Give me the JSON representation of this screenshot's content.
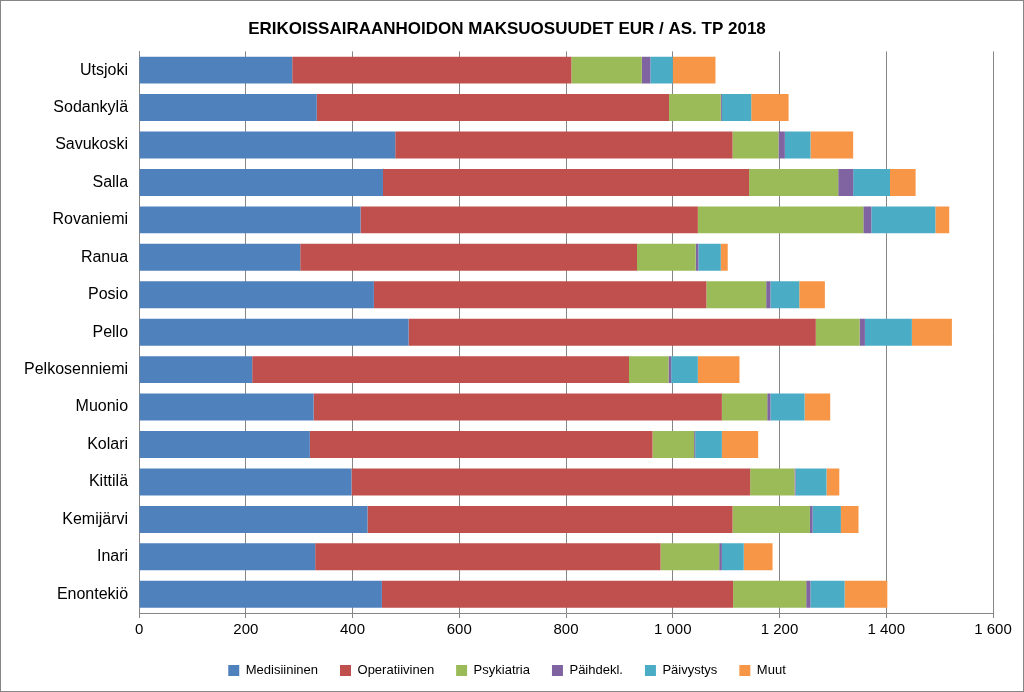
{
  "chart_data": {
    "type": "bar",
    "orientation": "horizontal",
    "stacked": true,
    "title": "ERIKOISSAIRAANHOIDON MAKSUOSUUDET EUR / AS. TP 2018",
    "categories": [
      "Utsjoki",
      "Sodankylä",
      "Savukoski",
      "Salla",
      "Rovaniemi",
      "Ranua",
      "Posio",
      "Pello",
      "Pelkosenniemi",
      "Muonio",
      "Kolari",
      "Kittilä",
      "Kemijärvi",
      "Inari",
      "Enontekiö"
    ],
    "series": [
      {
        "name": "Medisiininen",
        "color": "#4F81BD",
        "values": [
          287,
          333,
          480,
          457,
          415,
          302,
          440,
          505,
          212,
          327,
          320,
          398,
          428,
          330,
          455
        ]
      },
      {
        "name": "Operatiivinen",
        "color": "#C0504D",
        "values": [
          523,
          660,
          632,
          686,
          632,
          631,
          623,
          763,
          706,
          765,
          642,
          747,
          684,
          647,
          658
        ]
      },
      {
        "name": "Psykiatria",
        "color": "#9BBB59",
        "values": [
          132,
          97,
          86,
          167,
          310,
          110,
          112,
          82,
          74,
          85,
          78,
          83,
          145,
          110,
          137
        ]
      },
      {
        "name": "Päihdekl.",
        "color": "#8064A2",
        "values": [
          16,
          2,
          12,
          28,
          15,
          5,
          8,
          10,
          5,
          6,
          2,
          2,
          5,
          5,
          8
        ]
      },
      {
        "name": "Päivystys",
        "color": "#4BACC6",
        "values": [
          42,
          55,
          48,
          69,
          120,
          42,
          54,
          88,
          50,
          64,
          50,
          58,
          53,
          41,
          64
        ]
      },
      {
        "name": "Muut",
        "color": "#F79646",
        "values": [
          80,
          70,
          80,
          48,
          26,
          13,
          48,
          75,
          78,
          48,
          68,
          24,
          33,
          54,
          80
        ]
      }
    ],
    "xlim": [
      0,
      1600
    ],
    "xticks": [
      0,
      200,
      400,
      600,
      800,
      {
        "value": 1000,
        "label": "1 000"
      },
      {
        "value": 1200,
        "label": "1 200"
      },
      {
        "value": 1400,
        "label": "1 400"
      },
      {
        "value": 1600,
        "label": "1 600"
      }
    ],
    "grid": true,
    "legend": "bottom"
  }
}
